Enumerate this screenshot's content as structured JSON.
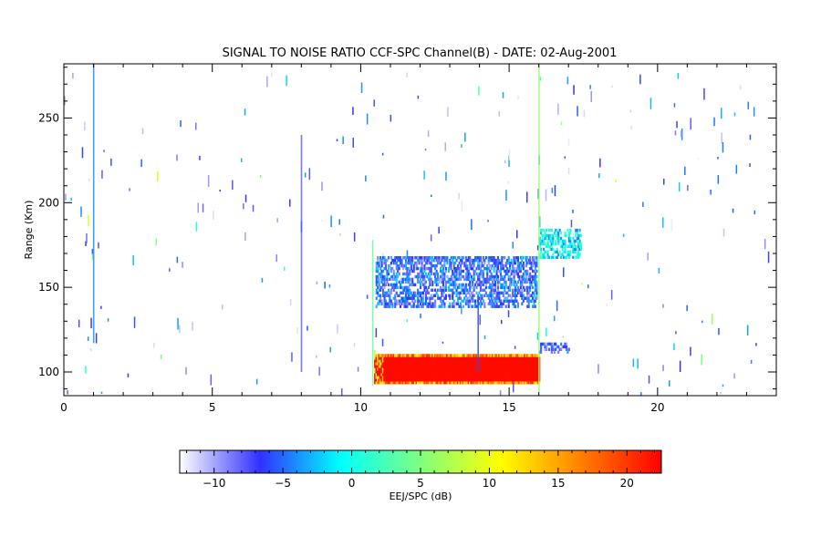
{
  "chart_data": {
    "type": "heatmap",
    "title": "SIGNAL TO NOISE RATIO CCF-SPC Channel(B) - DATE: 02-Aug-2001",
    "xlabel": "",
    "ylabel": "Range (Km)",
    "xlim": [
      0,
      24
    ],
    "ylim": [
      86,
      282
    ],
    "x_ticks": [
      0,
      5,
      10,
      15,
      20
    ],
    "x_tick_labels": [
      "0",
      "5",
      "10",
      "15",
      "20"
    ],
    "y_ticks": [
      100,
      150,
      200,
      250
    ],
    "y_tick_labels": [
      "100",
      "150",
      "200",
      "250"
    ],
    "colorbar": {
      "label": "EEJ/SPC (dB)",
      "range": [
        -12.5,
        22.5
      ],
      "ticks": [
        -10,
        -5,
        0,
        5,
        10,
        15,
        20
      ],
      "tick_labels": [
        "−10",
        "−5",
        "0",
        "5",
        "10",
        "15",
        "20"
      ],
      "colormap": [
        "#ffffff",
        "#3030ff",
        "#00ffff",
        "#7fff7f",
        "#ffff00",
        "#ff8000",
        "#ff0000"
      ]
    },
    "regions": [
      {
        "kind": "echo",
        "t_start": 10.45,
        "t_end": 16.0,
        "range_low": 93,
        "range_high": 110,
        "snr": 22
      },
      {
        "kind": "echo",
        "t_start": 10.5,
        "t_end": 15.9,
        "range_low": 138,
        "range_high": 168,
        "snr": -6
      },
      {
        "kind": "echo",
        "t_start": 16.0,
        "t_end": 17.4,
        "range_low": 167,
        "range_high": 183,
        "snr": -1
      },
      {
        "kind": "echo",
        "t_start": 16.0,
        "t_end": 17.0,
        "range_low": 111,
        "range_high": 116,
        "snr": -7
      },
      {
        "kind": "streak",
        "t": 1.0,
        "range_low": 117,
        "range_high": 282,
        "snr": -4
      },
      {
        "kind": "streak",
        "t": 8.0,
        "range_low": 100,
        "range_high": 240,
        "snr": -8
      },
      {
        "kind": "streak",
        "t": 10.4,
        "range_low": 92,
        "range_high": 178,
        "snr": 4
      },
      {
        "kind": "streak",
        "t": 13.95,
        "range_low": 100,
        "range_high": 145,
        "snr": -6
      },
      {
        "kind": "streak",
        "t": 16.0,
        "range_low": 88,
        "range_high": 282,
        "snr": 6
      }
    ]
  }
}
